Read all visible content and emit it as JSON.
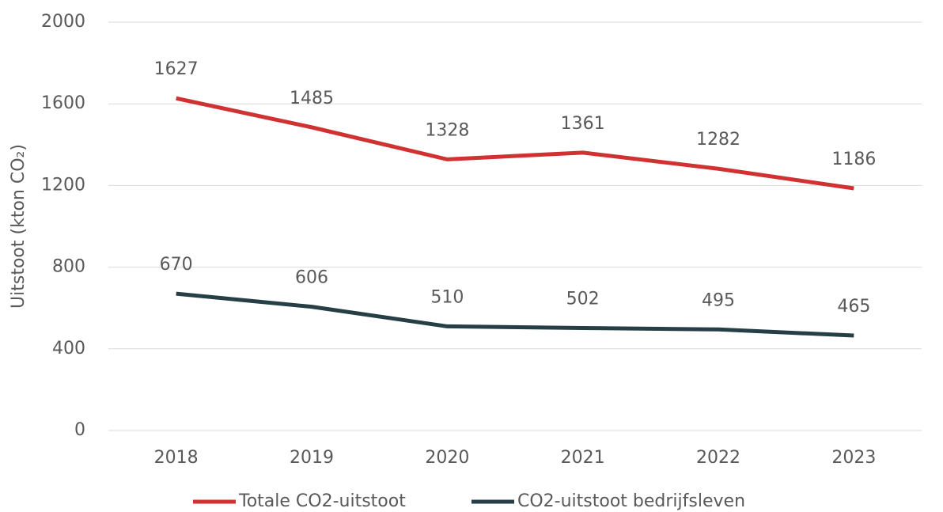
{
  "chart_data": {
    "type": "line",
    "y_label": "Uitstoot (kton CO₂)",
    "categories": [
      "2018",
      "2019",
      "2020",
      "2021",
      "2022",
      "2023"
    ],
    "series": [
      {
        "name": "Totale CO2-uitstoot",
        "color": "#d03232",
        "values": [
          1627,
          1485,
          1328,
          1361,
          1282,
          1186
        ]
      },
      {
        "name": "CO2-uitstoot bedrijfsleven",
        "color": "#263e46",
        "values": [
          670,
          606,
          510,
          502,
          495,
          465
        ]
      }
    ],
    "ylim": [
      0,
      2000
    ],
    "yticks": [
      0,
      400,
      800,
      1200,
      1600,
      2000
    ],
    "grid": true,
    "legend": "bottom"
  }
}
